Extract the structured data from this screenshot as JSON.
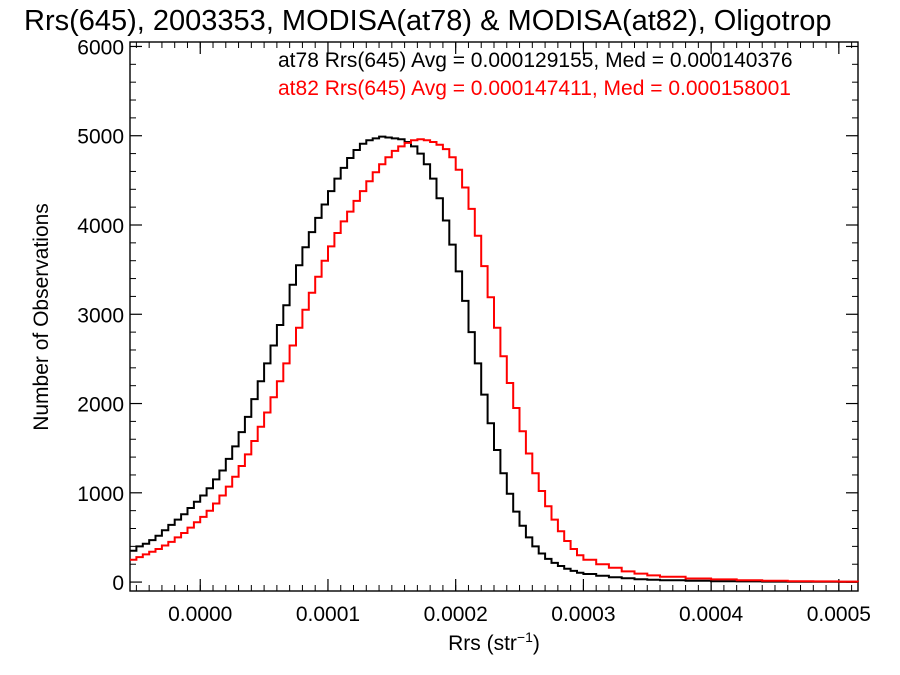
{
  "chart_data": {
    "type": "line",
    "step": true,
    "title": "Rrs(645), 2003353, MODISA(at78) & MODISA(at82), Oligotrop",
    "xlabel": "Rrs (str",
    "xlabel_sup": "−1",
    "xlabel_end": ")",
    "ylabel": "Number of Observations",
    "xlim": [
      -5.5e-05,
      0.000515
    ],
    "ylim": [
      -100,
      6050
    ],
    "x_ticks": [
      0.0,
      0.0001,
      0.0002,
      0.0003,
      0.0004,
      0.0005
    ],
    "x_tick_labels": [
      "0.0000",
      "0.0001",
      "0.0002",
      "0.0003",
      "0.0004",
      "0.0005"
    ],
    "y_ticks": [
      0,
      1000,
      2000,
      3000,
      4000,
      5000,
      6000
    ],
    "y_tick_labels": [
      "0",
      "1000",
      "2000",
      "3000",
      "4000",
      "5000",
      "6000"
    ],
    "grid": false,
    "legend_position": "top-right",
    "series": [
      {
        "name": "at78",
        "color": "#000000",
        "legend": "at78 Rrs(645) Avg = 0.000129155, Med = 0.000140376",
        "x": [
          -5.5e-05,
          -5e-05,
          -4.5e-05,
          -4e-05,
          -3.5e-05,
          -3e-05,
          -2.5e-05,
          -2e-05,
          -1.5e-05,
          -1e-05,
          -5e-06,
          0.0,
          5e-06,
          1e-05,
          1.5e-05,
          2e-05,
          2.5e-05,
          3e-05,
          3.5e-05,
          4e-05,
          4.5e-05,
          5e-05,
          5.5e-05,
          6e-05,
          6.5e-05,
          7e-05,
          7.5e-05,
          8e-05,
          8.5e-05,
          9e-05,
          9.5e-05,
          0.0001,
          0.000105,
          0.00011,
          0.000115,
          0.00012,
          0.000125,
          0.00013,
          0.000135,
          0.00014,
          0.000145,
          0.00015,
          0.000155,
          0.00016,
          0.000165,
          0.00017,
          0.000175,
          0.00018,
          0.000185,
          0.00019,
          0.000195,
          0.0002,
          0.000205,
          0.00021,
          0.000215,
          0.00022,
          0.000225,
          0.00023,
          0.000235,
          0.00024,
          0.000245,
          0.00025,
          0.000255,
          0.00026,
          0.000265,
          0.00027,
          0.000275,
          0.00028,
          0.000285,
          0.00029,
          0.000295,
          0.0003,
          0.00031,
          0.00032,
          0.00033,
          0.00034,
          0.00035,
          0.00036,
          0.00038,
          0.0004,
          0.00042,
          0.00044,
          0.00046,
          0.00048,
          0.0005,
          0.000515
        ],
        "y": [
          350,
          400,
          430,
          470,
          520,
          580,
          640,
          700,
          760,
          830,
          900,
          970,
          1050,
          1150,
          1250,
          1380,
          1520,
          1680,
          1850,
          2050,
          2250,
          2450,
          2650,
          2880,
          3100,
          3330,
          3550,
          3750,
          3920,
          4080,
          4230,
          4380,
          4520,
          4640,
          4750,
          4840,
          4910,
          4950,
          4970,
          4990,
          4980,
          4970,
          4960,
          4930,
          4880,
          4800,
          4680,
          4520,
          4300,
          4050,
          3780,
          3480,
          3150,
          2800,
          2450,
          2100,
          1780,
          1480,
          1220,
          990,
          790,
          630,
          500,
          400,
          320,
          260,
          215,
          180,
          150,
          125,
          105,
          90,
          70,
          55,
          42,
          32,
          25,
          20,
          14,
          10,
          7,
          5,
          4,
          3,
          2,
          2
        ]
      },
      {
        "name": "at82",
        "color": "#ff0000",
        "legend": "at82 Rrs(645) Avg = 0.000147411, Med = 0.000158001",
        "x": [
          -5.5e-05,
          -5e-05,
          -4.5e-05,
          -4e-05,
          -3.5e-05,
          -3e-05,
          -2.5e-05,
          -2e-05,
          -1.5e-05,
          -1e-05,
          -5e-06,
          0.0,
          5e-06,
          1e-05,
          1.5e-05,
          2e-05,
          2.5e-05,
          3e-05,
          3.5e-05,
          4e-05,
          4.5e-05,
          5e-05,
          5.5e-05,
          6e-05,
          6.5e-05,
          7e-05,
          7.5e-05,
          8e-05,
          8.5e-05,
          9e-05,
          9.5e-05,
          0.0001,
          0.000105,
          0.00011,
          0.000115,
          0.00012,
          0.000125,
          0.00013,
          0.000135,
          0.00014,
          0.000145,
          0.00015,
          0.000155,
          0.00016,
          0.000165,
          0.00017,
          0.000175,
          0.00018,
          0.000185,
          0.00019,
          0.000195,
          0.0002,
          0.000205,
          0.00021,
          0.000215,
          0.00022,
          0.000225,
          0.00023,
          0.000235,
          0.00024,
          0.000245,
          0.00025,
          0.000255,
          0.00026,
          0.000265,
          0.00027,
          0.000275,
          0.00028,
          0.000285,
          0.00029,
          0.000295,
          0.0003,
          0.00031,
          0.00032,
          0.00033,
          0.00034,
          0.00035,
          0.00036,
          0.00038,
          0.0004,
          0.00042,
          0.00044,
          0.00046,
          0.00048,
          0.0005,
          0.000515
        ],
        "y": [
          250,
          280,
          310,
          340,
          370,
          410,
          450,
          500,
          550,
          610,
          670,
          730,
          800,
          880,
          970,
          1070,
          1180,
          1300,
          1430,
          1580,
          1740,
          1900,
          2070,
          2250,
          2450,
          2650,
          2850,
          3050,
          3240,
          3420,
          3600,
          3760,
          3910,
          4040,
          4150,
          4270,
          4380,
          4490,
          4590,
          4680,
          4760,
          4830,
          4880,
          4920,
          4950,
          4960,
          4950,
          4930,
          4900,
          4850,
          4760,
          4620,
          4420,
          4180,
          3880,
          3540,
          3190,
          2850,
          2530,
          2230,
          1950,
          1690,
          1440,
          1220,
          1020,
          850,
          700,
          570,
          460,
          370,
          300,
          250,
          200,
          160,
          120,
          95,
          75,
          60,
          40,
          30,
          20,
          15,
          10,
          7,
          5,
          4
        ]
      }
    ]
  }
}
